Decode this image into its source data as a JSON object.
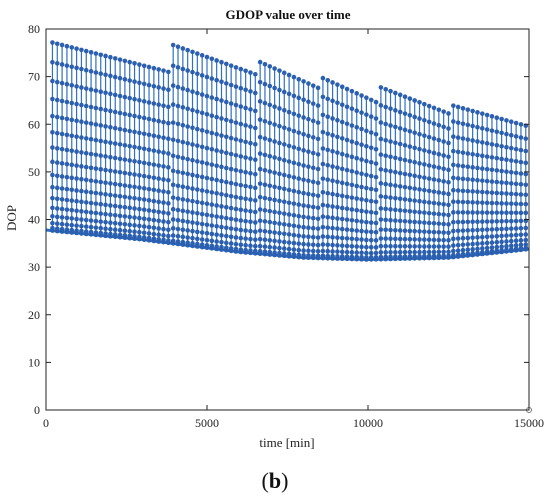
{
  "caption": {
    "open": "(",
    "letter": "b",
    "close": ")"
  },
  "chart_data": {
    "type": "scatter",
    "style": "stem",
    "title": "GDOP value over time",
    "xlabel": "time [min]",
    "ylabel": "DOP",
    "xlim": [
      0,
      15000
    ],
    "ylim": [
      0,
      80
    ],
    "xticks": [
      0,
      5000,
      10000,
      15000
    ],
    "yticks": [
      0,
      10,
      20,
      30,
      40,
      50,
      60,
      70,
      80
    ],
    "grid": false,
    "color": "#2f6fc4",
    "marker_color": "#2b5fb0",
    "stem_interval_min": 150,
    "epochs_per_stem": 16,
    "baseline_knots": {
      "x": [
        0,
        3000,
        6000,
        8000,
        10000,
        12500,
        15000
      ],
      "y": [
        37.8,
        35.8,
        33.2,
        32.0,
        31.6,
        32.0,
        33.8
      ]
    },
    "peak_envelopes": [
      {
        "x": [
          0,
          3800
        ],
        "y": [
          77.5,
          71.0
        ]
      },
      {
        "x": [
          3800,
          6500
        ],
        "y": [
          77.0,
          70.5
        ]
      },
      {
        "x": [
          6500,
          8500
        ],
        "y": [
          73.5,
          67.5
        ]
      },
      {
        "x": [
          8500,
          10300
        ],
        "y": [
          70.0,
          64.5
        ]
      },
      {
        "x": [
          10300,
          12600
        ],
        "y": [
          68.0,
          62.0
        ]
      },
      {
        "x": [
          12600,
          15000
        ],
        "y": [
          64.0,
          59.5
        ]
      }
    ]
  }
}
